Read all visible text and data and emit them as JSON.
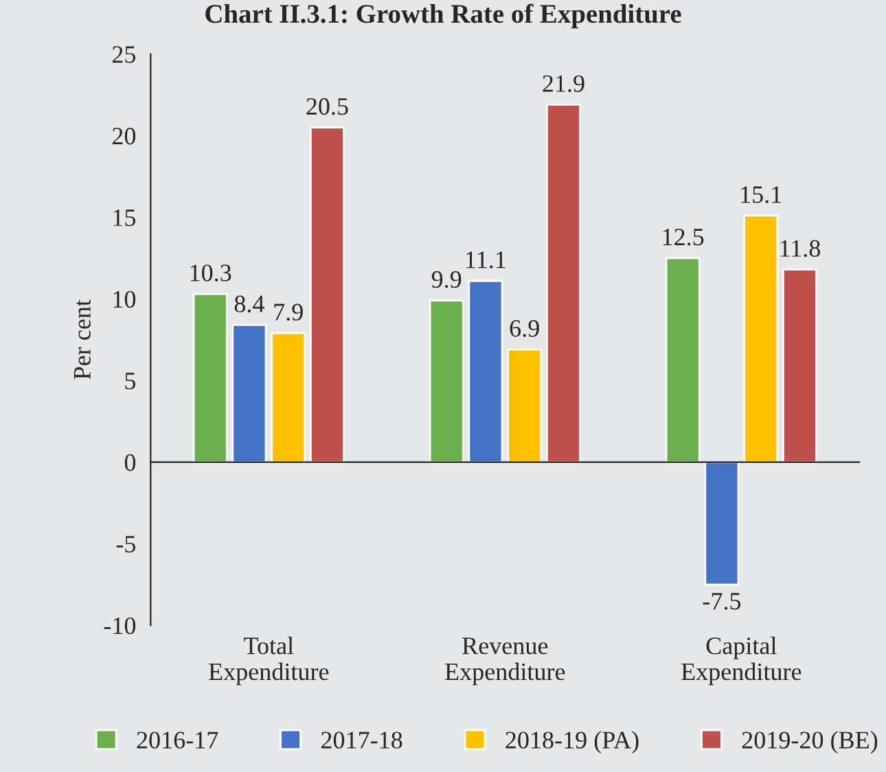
{
  "chart_data": {
    "type": "bar",
    "title": "Chart II.3.1: Growth Rate of Expenditure",
    "ylabel": "Per cent",
    "categories": [
      "Total\nExpenditure",
      "Revenue\nExpenditure",
      "Capital\nExpenditure"
    ],
    "series": [
      {
        "name": "2016-17",
        "color": "#6ab04c",
        "values": [
          10.3,
          9.9,
          12.5
        ]
      },
      {
        "name": "2017-18",
        "color": "#4472c4",
        "values": [
          8.4,
          11.1,
          -7.5
        ]
      },
      {
        "name": "2018-19 (PA)",
        "color": "#ffc000",
        "values": [
          7.9,
          6.9,
          15.1
        ]
      },
      {
        "name": "2019-20 (BE)",
        "color": "#c0504d",
        "values": [
          20.5,
          21.9,
          11.8
        ]
      }
    ],
    "ylim": [
      -10,
      25
    ],
    "yticks": [
      -10,
      -5,
      0,
      5,
      10,
      15,
      20,
      25
    ],
    "data_labels": true,
    "legend": "bottom"
  }
}
